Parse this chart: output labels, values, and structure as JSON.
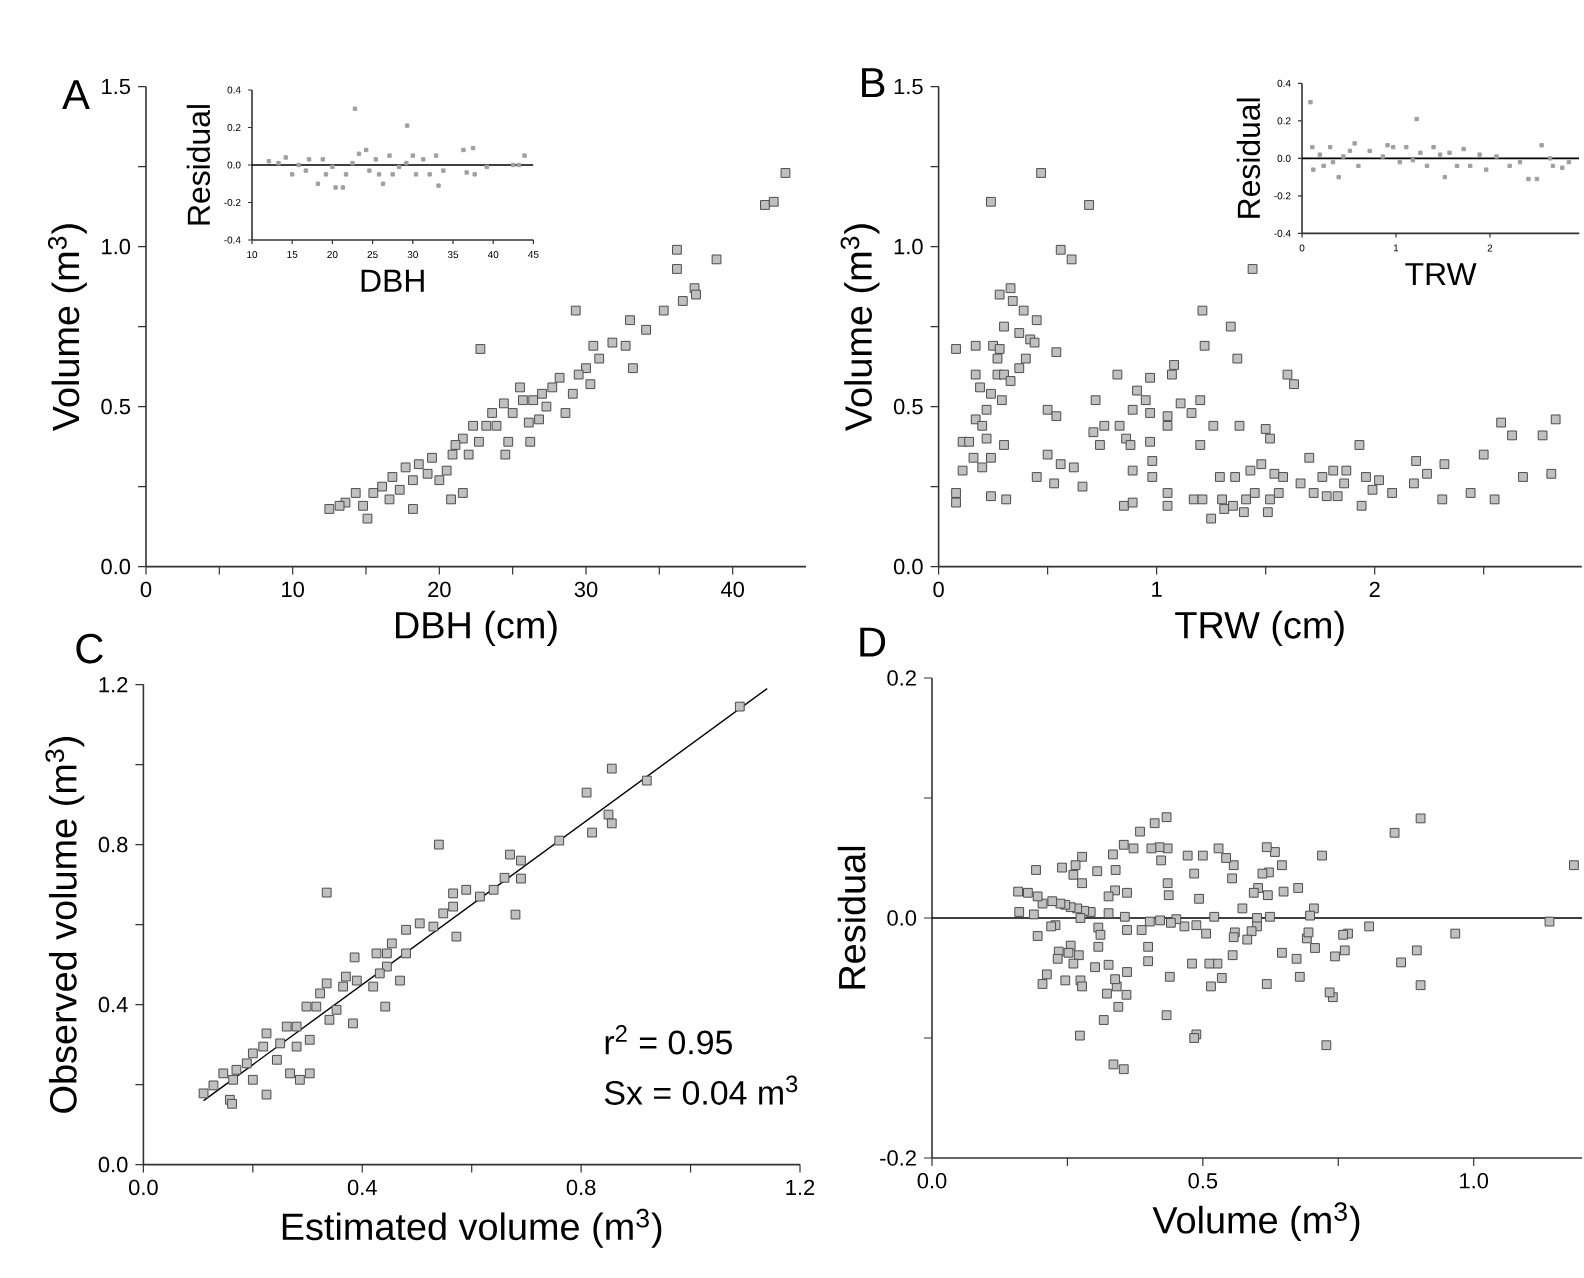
{
  "chart_data": [
    {
      "type": "scatter",
      "title": "A",
      "xlabel": "DBH (cm)",
      "ylabel": "Volume (m$^{3}$)",
      "marker": "square",
      "xlim": [
        0,
        45
      ],
      "ylim": [
        0,
        1.5
      ],
      "xticks": [
        0,
        {
          "value": 5,
          "label": null
        },
        10,
        {
          "value": 15,
          "label": null
        },
        20,
        {
          "value": 25,
          "label": null
        },
        30,
        {
          "value": 35,
          "label": null
        },
        40
      ],
      "yticks": [
        {
          "value": 0,
          "label": "0.0"
        },
        {
          "value": 0.25,
          "label": null
        },
        0.5,
        {
          "value": 0.75,
          "label": null
        },
        {
          "value": 1,
          "label": "1.0"
        },
        {
          "value": 1.25,
          "label": null
        },
        1.5
      ],
      "series": [
        {
          "color": "#c0c0c0",
          "x": [
            43.6,
            42.2,
            42.8,
            38.9,
            36.2,
            36.2,
            37.4,
            37.5,
            36.6,
            35.3,
            29.3,
            33.0,
            34.1,
            22.8,
            33.2,
            31.8,
            30.5,
            30.0,
            30.3,
            29.5,
            29.1,
            28.2,
            27.7,
            27.3,
            26.4,
            26.8,
            25.7,
            26.1,
            26.2,
            24.7,
            24.5,
            24.4,
            23.6,
            23.2,
            22.7,
            22.3,
            21.6,
            21.1,
            20.9,
            20.5,
            19.5,
            20.0,
            20.8,
            21.6,
            19.2,
            18.6,
            18.2,
            18.2,
            17.7,
            16.8,
            17.3,
            16.6,
            16.1,
            15.5,
            14.3,
            14.8,
            13.6,
            15.1,
            12.5,
            13.2,
            32.7,
            30.9,
            28.6,
            25.5,
            27.0,
            25.0,
            23.9,
            22.0
          ],
          "values": [
            1.23,
            1.13,
            1.14,
            0.96,
            0.99,
            0.93,
            0.87,
            0.85,
            0.83,
            0.8,
            0.8,
            0.77,
            0.74,
            0.68,
            0.62,
            0.7,
            0.69,
            0.62,
            0.57,
            0.6,
            0.54,
            0.59,
            0.56,
            0.5,
            0.52,
            0.46,
            0.52,
            0.45,
            0.39,
            0.39,
            0.35,
            0.51,
            0.48,
            0.44,
            0.39,
            0.44,
            0.4,
            0.38,
            0.35,
            0.3,
            0.34,
            0.27,
            0.21,
            0.23,
            0.29,
            0.32,
            0.27,
            0.18,
            0.31,
            0.28,
            0.24,
            0.21,
            0.25,
            0.23,
            0.23,
            0.19,
            0.2,
            0.15,
            0.18,
            0.19,
            0.69,
            0.65,
            0.48,
            0.56,
            0.54,
            0.48,
            0.44,
            0.35
          ]
        }
      ]
    },
    {
      "type": "scatter",
      "xlabel": "DBH",
      "ylabel": "Residual",
      "marker": "square",
      "xlim": [
        10,
        45
      ],
      "ylim": [
        -0.4,
        0.4
      ],
      "xticks": [
        10,
        15,
        20,
        25,
        30,
        35,
        40,
        45
      ],
      "yticks": [
        -0.4,
        -0.2,
        {
          "value": 0,
          "label": "0.0"
        },
        0.2,
        0.4
      ],
      "ref_lines": [
        {
          "axis": "y",
          "value": 0,
          "color": "#000000"
        }
      ],
      "series": [
        {
          "color": "#a0a0a0",
          "x": [
            22.8,
            29.3,
            12.1,
            14.2,
            15.8,
            15.0,
            17.1,
            18.2,
            19.2,
            20.4,
            21.3,
            21.7,
            23.3,
            24.2,
            24.6,
            25.4,
            26.3,
            27.1,
            27.5,
            28.3,
            30.0,
            30.4,
            31.3,
            32.1,
            32.9,
            33.2,
            33.8,
            36.3,
            37.5,
            36.7,
            37.7,
            39.2,
            42.5,
            43.2,
            43.9,
            18.8,
            20.0,
            22.5,
            16.7,
            13.3,
            25.8,
            29.2
          ],
          "values": [
            0.3,
            0.21,
            0.02,
            0.04,
            0.0,
            -0.05,
            0.03,
            -0.1,
            -0.05,
            -0.12,
            -0.12,
            -0.05,
            0.06,
            0.08,
            -0.03,
            0.03,
            -0.1,
            0.05,
            -0.05,
            -0.01,
            0.05,
            -0.05,
            0.03,
            -0.05,
            0.05,
            -0.11,
            -0.03,
            0.08,
            0.09,
            -0.04,
            -0.05,
            -0.01,
            0.0,
            0.0,
            0.05,
            0.03,
            -0.01,
            0.01,
            -0.03,
            0.01,
            -0.05,
            0.01
          ]
        }
      ]
    },
    {
      "type": "scatter",
      "title": "B",
      "xlabel": "TRW (cm)",
      "ylabel": "Volume (m$^{3}$)",
      "marker": "square",
      "xlim": [
        0,
        2.95
      ],
      "ylim": [
        0,
        1.5
      ],
      "xticks": [
        0,
        {
          "value": 0.5,
          "label": null
        },
        1,
        {
          "value": 1.5,
          "label": null
        },
        2,
        {
          "value": 2.5,
          "label": null
        }
      ],
      "yticks": [
        {
          "value": 0,
          "label": "0.0"
        },
        {
          "value": 0.25,
          "label": null
        },
        0.5,
        {
          "value": 0.75,
          "label": null
        },
        {
          "value": 1,
          "label": "1.0"
        },
        {
          "value": 1.25,
          "label": null
        },
        1.5
      ],
      "series": [
        {
          "color": "#c0c0c0",
          "x": [
            0.08,
            0.08,
            0.08,
            0.11,
            0.11,
            0.14,
            0.16,
            0.17,
            0.17,
            0.19,
            0.17,
            0.2,
            0.2,
            0.22,
            0.22,
            0.24,
            0.24,
            0.24,
            0.24,
            0.25,
            0.27,
            0.27,
            0.28,
            0.28,
            0.3,
            0.29,
            0.3,
            0.3,
            0.31,
            0.33,
            0.34,
            0.33,
            0.37,
            0.37,
            0.39,
            0.4,
            0.42,
            0.45,
            0.44,
            0.45,
            0.47,
            0.5,
            0.53,
            0.54,
            0.54,
            0.5,
            0.56,
            0.56,
            0.61,
            0.62,
            0.66,
            0.69,
            0.71,
            0.72,
            0.74,
            0.76,
            0.82,
            0.83,
            0.85,
            0.89,
            0.86,
            0.88,
            0.89,
            0.89,
            0.91,
            0.95,
            0.97,
            0.97,
            0.98,
            0.98,
            0.97,
            1.05,
            1.05,
            1.07,
            1.08,
            1.05,
            1.05,
            1.11,
            1.16,
            1.17,
            1.2,
            1.21,
            1.22,
            1.2,
            1.21,
            1.26,
            1.25,
            1.29,
            1.3,
            1.31,
            1.34,
            1.35,
            1.36,
            1.37,
            1.38,
            1.4,
            1.41,
            1.43,
            1.44,
            1.45,
            1.48,
            1.5,
            1.51,
            1.52,
            1.52,
            1.54,
            1.56,
            1.58,
            1.6,
            1.63,
            1.66,
            1.7,
            1.72,
            1.76,
            1.78,
            1.81,
            1.83,
            1.86,
            1.87,
            1.94,
            1.93,
            1.96,
            1.99,
            2.02,
            2.08,
            2.18,
            2.19,
            2.24,
            2.31,
            2.32,
            2.44,
            2.5,
            2.55,
            2.58,
            2.63,
            2.68,
            2.77,
            2.83,
            2.81
          ],
          "values": [
            0.68,
            0.23,
            0.2,
            0.39,
            0.3,
            0.39,
            0.34,
            0.69,
            0.6,
            0.56,
            0.46,
            0.44,
            0.31,
            0.49,
            0.4,
            0.54,
            0.34,
            1.14,
            0.22,
            0.69,
            0.65,
            0.6,
            0.68,
            0.85,
            0.38,
            0.52,
            0.75,
            0.6,
            0.21,
            0.87,
            0.83,
            0.58,
            0.73,
            0.62,
            0.8,
            0.65,
            0.71,
            0.77,
            0.7,
            0.28,
            1.23,
            0.49,
            0.26,
            0.67,
            0.47,
            0.35,
            0.99,
            0.32,
            0.96,
            0.31,
            0.25,
            1.13,
            0.42,
            0.52,
            0.38,
            0.44,
            0.6,
            0.44,
            0.19,
            0.2,
            0.4,
            0.38,
            0.49,
            0.3,
            0.55,
            0.52,
            0.59,
            0.39,
            0.33,
            0.28,
            0.48,
            0.47,
            0.44,
            0.6,
            0.63,
            0.19,
            0.23,
            0.51,
            0.48,
            0.21,
            0.38,
            0.8,
            0.69,
            0.52,
            0.21,
            0.44,
            0.15,
            0.28,
            0.21,
            0.18,
            0.75,
            0.19,
            0.28,
            0.65,
            0.44,
            0.17,
            0.21,
            0.3,
            0.93,
            0.23,
            0.32,
            0.43,
            0.17,
            0.21,
            0.4,
            0.29,
            0.23,
            0.28,
            0.6,
            0.57,
            0.26,
            0.34,
            0.23,
            0.28,
            0.22,
            0.3,
            0.22,
            0.26,
            0.3,
            0.19,
            0.38,
            0.28,
            0.24,
            0.27,
            0.23,
            0.26,
            0.33,
            0.29,
            0.21,
            0.32,
            0.23,
            0.35,
            0.21,
            0.45,
            0.41,
            0.28,
            0.41,
            0.46,
            0.29
          ]
        }
      ]
    },
    {
      "type": "scatter",
      "xlabel": "TRW",
      "ylabel": "Residual",
      "marker": "square",
      "xlim": [
        0,
        2.95
      ],
      "ylim": [
        -0.4,
        0.4
      ],
      "xticks": [
        0,
        1,
        2
      ],
      "yticks": [
        -0.4,
        -0.2,
        {
          "value": 0,
          "label": "0.0"
        },
        0.2,
        0.4
      ],
      "ref_lines": [
        {
          "axis": "y",
          "value": 0,
          "color": "#000000"
        }
      ],
      "series": [
        {
          "color": "#a0a0a0",
          "x": [
            0.09,
            1.22,
            0.11,
            0.12,
            0.19,
            0.23,
            0.3,
            0.33,
            0.39,
            0.44,
            0.51,
            0.56,
            0.6,
            0.72,
            0.86,
            0.91,
            0.97,
            1.04,
            1.11,
            1.18,
            1.26,
            1.33,
            1.4,
            1.47,
            1.52,
            1.57,
            1.65,
            1.72,
            1.79,
            1.89,
            1.96,
            2.07,
            2.21,
            2.32,
            2.41,
            2.5,
            2.55,
            2.64,
            2.67,
            2.77,
            2.84
          ],
          "values": [
            0.3,
            0.21,
            0.06,
            -0.06,
            0.02,
            -0.04,
            0.06,
            -0.02,
            -0.1,
            0.01,
            0.04,
            0.08,
            -0.04,
            0.04,
            0.01,
            0.07,
            0.06,
            -0.02,
            0.06,
            -0.01,
            0.03,
            -0.04,
            0.06,
            0.02,
            -0.1,
            0.03,
            -0.04,
            0.05,
            -0.04,
            0.02,
            -0.06,
            0.01,
            -0.04,
            -0.02,
            -0.11,
            -0.11,
            0.07,
            0.0,
            -0.04,
            -0.05,
            -0.02
          ]
        }
      ]
    },
    {
      "type": "scatter",
      "title": "C",
      "xlabel": "Estimated volume (m$^{3}$)",
      "ylabel": "Observed volume (m$^{3}$)",
      "marker": "square",
      "xlim": [
        0,
        1.2
      ],
      "ylim": [
        0,
        1.2
      ],
      "xticks": [
        {
          "value": 0,
          "label": "0.0"
        },
        {
          "value": 0.2,
          "label": null
        },
        0.4,
        {
          "value": 0.6,
          "label": null
        },
        0.8,
        {
          "value": 1,
          "label": null
        },
        1.2
      ],
      "yticks": [
        {
          "value": 0,
          "label": "0.0"
        },
        {
          "value": 0.2,
          "label": null
        },
        0.4,
        {
          "value": 0.6,
          "label": null
        },
        0.8,
        {
          "value": 1,
          "label": null
        },
        1.2
      ],
      "annotations": [
        "r$^{2}$ = 0.95",
        "Sx = 0.04 m$^{3}$"
      ],
      "series": [
        {
          "color": "#c0c0c0",
          "x": [
            1.09,
            0.856,
            0.81,
            0.92,
            0.82,
            0.85,
            0.856,
            0.76,
            0.67,
            0.69,
            0.54,
            0.335,
            0.66,
            0.69,
            0.68,
            0.64,
            0.615,
            0.59,
            0.566,
            0.566,
            0.572,
            0.548,
            0.53,
            0.505,
            0.48,
            0.454,
            0.48,
            0.445,
            0.426,
            0.469,
            0.445,
            0.432,
            0.442,
            0.42,
            0.386,
            0.39,
            0.37,
            0.365,
            0.335,
            0.383,
            0.353,
            0.323,
            0.316,
            0.298,
            0.28,
            0.304,
            0.28,
            0.262,
            0.25,
            0.268,
            0.286,
            0.304,
            0.225,
            0.219,
            0.2,
            0.225,
            0.189,
            0.17,
            0.164,
            0.146,
            0.158,
            0.162,
            0.128,
            0.11,
            0.2,
            0.244,
            0.34
          ],
          "values": [
            1.145,
            0.99,
            0.93,
            0.96,
            0.83,
            0.875,
            0.853,
            0.81,
            0.775,
            0.76,
            0.8,
            0.68,
            0.717,
            0.715,
            0.625,
            0.687,
            0.67,
            0.687,
            0.678,
            0.645,
            0.57,
            0.628,
            0.595,
            0.603,
            0.587,
            0.553,
            0.528,
            0.528,
            0.528,
            0.46,
            0.495,
            0.478,
            0.395,
            0.445,
            0.518,
            0.46,
            0.47,
            0.445,
            0.453,
            0.353,
            0.387,
            0.428,
            0.395,
            0.395,
            0.345,
            0.312,
            0.295,
            0.345,
            0.303,
            0.228,
            0.212,
            0.228,
            0.328,
            0.295,
            0.278,
            0.175,
            0.253,
            0.237,
            0.212,
            0.228,
            0.162,
            0.152,
            0.198,
            0.178,
            0.212,
            0.262,
            0.362
          ]
        },
        {
          "type": "line",
          "marker": "none",
          "color": "#000000",
          "x": [
            0.11,
            1.14
          ],
          "values": [
            0.16,
            1.19
          ]
        }
      ]
    },
    {
      "type": "scatter",
      "title": "D",
      "xlabel": "Volume (m$^{3}$)",
      "ylabel": "Residual",
      "marker": "square",
      "xlim": [
        0,
        1.2
      ],
      "ylim": [
        -0.2,
        0.2
      ],
      "xticks": [
        {
          "value": 0,
          "label": "0.0"
        },
        {
          "value": 0.25,
          "label": null
        },
        0.5,
        {
          "value": 0.75,
          "label": null
        },
        {
          "value": 1,
          "label": "1.0"
        }
      ],
      "yticks": [
        -0.2,
        {
          "value": -0.1,
          "label": null
        },
        {
          "value": 0,
          "label": "0.0"
        },
        {
          "value": 0.1,
          "label": null
        },
        0.2
      ],
      "ref_lines": [
        {
          "axis": "y",
          "value": 0,
          "color": "#000000"
        }
      ],
      "series": [
        {
          "color": "#c0c0c0",
          "x": [
            1.185,
            1.14,
            0.966,
            0.902,
            0.854,
            0.895,
            0.902,
            0.866,
            0.807,
            0.768,
            0.759,
            0.762,
            0.744,
            0.728,
            0.74,
            0.734,
            0.72,
            0.707,
            0.705,
            0.698,
            0.692,
            0.695,
            0.676,
            0.673,
            0.679,
            0.646,
            0.649,
            0.646,
            0.633,
            0.618,
            0.624,
            0.622,
            0.62,
            0.618,
            0.602,
            0.61,
            0.6,
            0.594,
            0.6,
            0.59,
            0.582,
            0.573,
            0.559,
            0.557,
            0.555,
            0.557,
            0.554,
            0.543,
            0.529,
            0.535,
            0.527,
            0.521,
            0.515,
            0.512,
            0.506,
            0.5,
            0.493,
            0.484,
            0.488,
            0.488,
            0.484,
            0.48,
            0.472,
            0.466,
            0.451,
            0.441,
            0.439,
            0.433,
            0.435,
            0.437,
            0.433,
            0.435,
            0.421,
            0.423,
            0.411,
            0.42,
            0.405,
            0.402,
            0.399,
            0.399,
            0.387,
            0.384,
            0.372,
            0.356,
            0.354,
            0.36,
            0.36,
            0.36,
            0.359,
            0.354,
            0.335,
            0.344,
            0.341,
            0.338,
            0.334,
            0.338,
            0.339,
            0.326,
            0.326,
            0.326,
            0.323,
            0.317,
            0.305,
            0.307,
            0.311,
            0.307,
            0.301,
            0.293,
            0.281,
            0.277,
            0.277,
            0.274,
            0.274,
            0.277,
            0.271,
            0.273,
            0.268,
            0.265,
            0.261,
            0.256,
            0.261,
            0.256,
            0.252,
            0.246,
            0.246,
            0.24,
            0.237,
            0.234,
            0.232,
            0.228,
            0.222,
            0.22,
            0.212,
            0.204,
            0.204,
            0.195,
            0.195,
            0.192,
            0.188,
            0.177,
            0.161,
            0.159
          ],
          "values": [
            0.044,
            -0.003,
            -0.013,
            0.083,
            0.071,
            -0.027,
            -0.056,
            -0.037,
            -0.007,
            -0.013,
            -0.014,
            -0.027,
            -0.032,
            -0.106,
            -0.066,
            -0.062,
            0.052,
            -0.025,
            0.008,
            0.002,
            -0.017,
            -0.012,
            0.025,
            -0.034,
            -0.049,
            -0.029,
            0.022,
            0.044,
            0.055,
            0.059,
            0.001,
            0.038,
            0.019,
            -0.055,
            0.025,
            0.037,
            0.0,
            0.021,
            -0.007,
            -0.011,
            -0.018,
            0.008,
            -0.012,
            -0.016,
            -0.031,
            0.044,
            0.033,
            0.05,
            0.058,
            -0.05,
            -0.038,
            0.001,
            -0.057,
            -0.038,
            -0.013,
            0.052,
            0.016,
            0.037,
            -0.006,
            -0.097,
            -0.1,
            -0.038,
            0.052,
            -0.007,
            -0.001,
            -0.004,
            -0.049,
            -0.081,
            0.029,
            0.019,
            0.084,
            0.058,
            -0.002,
            0.048,
            0.079,
            0.059,
            0.058,
            -0.003,
            -0.024,
            -0.036,
            -0.01,
            0.072,
            0.058,
            0.001,
            0.061,
            -0.01,
            0.021,
            -0.045,
            -0.064,
            -0.126,
            -0.122,
            -0.074,
            -0.057,
            -0.051,
            0.053,
            0.023,
            0.04,
            -0.039,
            0.018,
            0.004,
            -0.063,
            -0.085,
            0.039,
            -0.008,
            -0.014,
            -0.024,
            -0.041,
            0.005,
            0.006,
            0.051,
            0.029,
            0.0,
            -0.052,
            -0.057,
            -0.031,
            -0.098,
            0.008,
            0.044,
            0.036,
            0.009,
            -0.038,
            -0.023,
            -0.029,
            -0.052,
            0.011,
            0.042,
            0.012,
            -0.028,
            -0.034,
            -0.006,
            0.014,
            -0.007,
            -0.047,
            -0.055,
            0.012,
            0.018,
            -0.015,
            0.04,
            0.003,
            0.021,
            0.005,
            0.022
          ]
        }
      ]
    }
  ]
}
